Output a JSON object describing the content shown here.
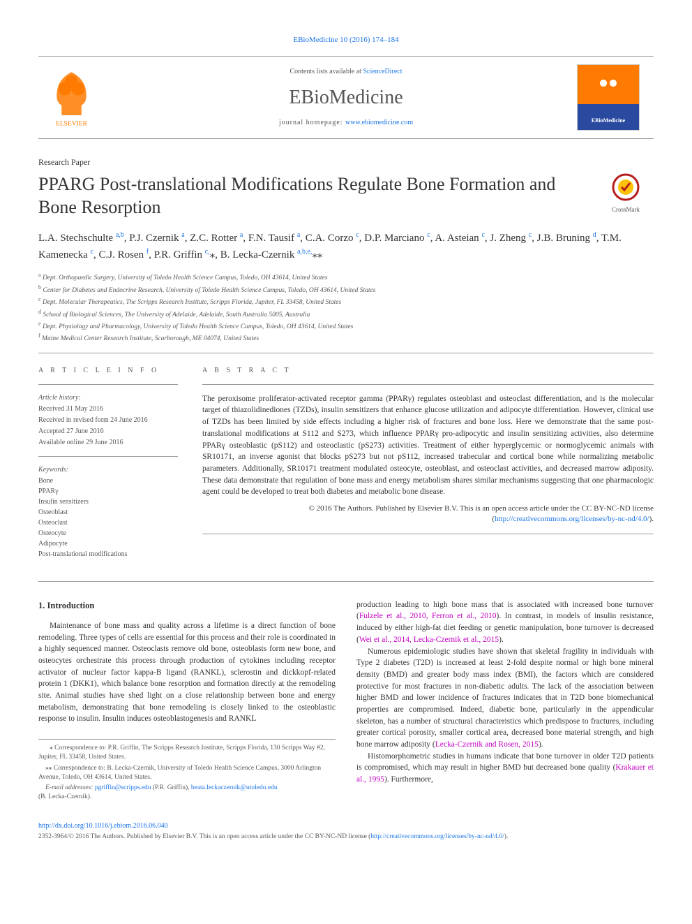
{
  "top_link": {
    "text": "EBioMedicine 10 (2016) 174–184"
  },
  "masthead": {
    "sd_prefix": "Contents lists available at ",
    "sd_link": "ScienceDirect",
    "journal_name": "EBioMedicine",
    "homepage_prefix": "journal homepage: ",
    "homepage_link": "www.ebiomedicine.com",
    "cover_label": "EBioMedicine"
  },
  "section_label": "Research Paper",
  "title": "PPARG Post-translational Modifications Regulate Bone Formation and Bone Resorption",
  "crossmark_label": "CrossMark",
  "authors_html": "L.A. Stechschulte <sup>a,b</sup>, P.J. Czernik <sup>a</sup>, Z.C. Rotter <sup>a</sup>, F.N. Tausif <sup>a</sup>, C.A. Corzo <sup>c</sup>, D.P. Marciano <sup>c</sup>, A. Asteian <sup>c</sup>, J. Zheng <sup>c</sup>, J.B. Bruning <sup>d</sup>, T.M. Kamenecka <sup>c</sup>, C.J. Rosen <sup>f</sup>, P.R. Griffin <sup>c,</sup>⁎, B. Lecka-Czernik <sup>a,b,e,</sup>⁎⁎",
  "affiliations": [
    {
      "sup": "a",
      "text": "Dept. Orthopaedic Surgery, University of Toledo Health Science Campus, Toledo, OH 43614, United States"
    },
    {
      "sup": "b",
      "text": "Center for Diabetes and Endocrine Research, University of Toledo Health Science Campus, Toledo, OH 43614, United States"
    },
    {
      "sup": "c",
      "text": "Dept. Molecular Therapeutics, The Scripps Research Institute, Scripps Florida, Jupiter, FL 33458, United States"
    },
    {
      "sup": "d",
      "text": "School of Biological Sciences, The University of Adelaide, Adelaide, South Australia 5005, Australia"
    },
    {
      "sup": "e",
      "text": "Dept. Physiology and Pharmacology, University of Toledo Health Science Campus, Toledo, OH 43614, United States"
    },
    {
      "sup": "f",
      "text": "Maine Medical Center Research Institute, Scarborough, ME 04074, United States"
    }
  ],
  "article_info": {
    "heading": "A R T I C L E   I N F O",
    "history_label": "Article history:",
    "history": [
      "Received 31 May 2016",
      "Received in revised form 24 June 2016",
      "Accepted 27 June 2016",
      "Available online 29 June 2016"
    ],
    "keywords_label": "Keywords:",
    "keywords": [
      "Bone",
      "PPARγ",
      "Insulin sensitizers",
      "Osteoblast",
      "Osteoclast",
      "Osteocyte",
      "Adipocyte",
      "Post-translational modifications"
    ]
  },
  "abstract": {
    "heading": "A B S T R A C T",
    "text": "The peroxisome proliferator-activated receptor gamma (PPARγ) regulates osteoblast and osteoclast differentiation, and is the molecular target of thiazolidinediones (TZDs), insulin sensitizers that enhance glucose utilization and adipocyte differentiation. However, clinical use of TZDs has been limited by side effects including a higher risk of fractures and bone loss. Here we demonstrate that the same post-translational modifications at S112 and S273, which influence PPARγ pro-adipocytic and insulin sensitizing activities, also determine PPARγ osteoblastic (pS112) and osteoclastic (pS273) activities. Treatment of either hyperglycemic or normoglycemic animals with SR10171, an inverse agonist that blocks pS273 but not pS112, increased trabecular and cortical bone while normalizing metabolic parameters. Additionally, SR10171 treatment modulated osteocyte, osteoblast, and osteoclast activities, and decreased marrow adiposity. These data demonstrate that regulation of bone mass and energy metabolism shares similar mechanisms suggesting that one pharmacologic agent could be developed to treat both diabetes and metabolic bone disease.",
    "copyright": "© 2016 The Authors. Published by Elsevier B.V. This is an open access article under the CC BY-NC-ND license",
    "license_url": "http://creativecommons.org/licenses/by-nc-nd/4.0/"
  },
  "body": {
    "h1": "1. Introduction",
    "p1": "Maintenance of bone mass and quality across a lifetime is a direct function of bone remodeling. Three types of cells are essential for this process and their role is coordinated in a highly sequenced manner. Osteoclasts remove old bone, osteoblasts form new bone, and osteocytes orchestrate this process through production of cytokines including receptor activator of nuclear factor kappa-B ligand (RANKL), sclerostin and dickkopf-related protein 1 (DKK1), which balance bone resorption and formation directly at the remodeling site. Animal studies have shed light on a close relationship between bone and energy metabolism, demonstrating that bone remodeling is closely linked to the osteoblastic response to insulin. Insulin induces osteoblastogenesis and RANKL",
    "p2_pre": "production leading to high bone mass that is associated with increased bone turnover (",
    "p2_link": "Fulzele et al., 2010, Ferron et al., 2010",
    "p2_mid": "). In contrast, in models of insulin resistance, induced by either high-fat diet feeding or genetic manipulation, bone turnover is decreased (",
    "p2_link2": "Wei et al., 2014, Lecka-Czernik et al., 2015",
    "p2_post": ").",
    "p3_pre": "Numerous epidemiologic studies have shown that skeletal fragility in individuals with Type 2 diabetes (T2D) is increased at least 2-fold despite normal or high bone mineral density (BMD) and greater body mass index (BMI), the factors which are considered protective for most fractures in non-diabetic adults. The lack of the association between higher BMD and lower incidence of fractures indicates that in T2D bone biomechanical properties are compromised. Indeed, diabetic bone, particularly in the appendicular skeleton, has a number of structural characteristics which predispose to fractures, including greater cortical porosity, smaller cortical area, decreased bone material strength, and high bone marrow adiposity (",
    "p3_link": "Lecka-Czernik and Rosen, 2015",
    "p3_post": ").",
    "p4_pre": "Histomorphometric studies in humans indicate that bone turnover in older T2D patients is compromised, which may result in higher BMD but decreased bone quality (",
    "p4_link": "Krakauer et al., 1995",
    "p4_post": "). Furthermore,"
  },
  "footnotes": {
    "c1": "⁎ Correspondence to: P.R. Griffin, The Scripps Research Institute, Scripps Florida, 130 Scripps Way #2, Jupiter, FL 33458, United States.",
    "c2": "⁎⁎ Correspondence to: B. Lecka-Czernik, University of Toledo Health Science Campus, 3000 Arlington Avenue, Toledo, OH 43614, United States.",
    "em_label": "E-mail addresses: ",
    "em1": "pgriffin@scripps.edu",
    "em1_paren": " (P.R. Griffin), ",
    "em2": "beata.leckaczernik@utoledo.edu",
    "em2_paren": " (B. Lecka-Czernik)."
  },
  "doi": {
    "url": "http://dx.doi.org/10.1016/j.ebiom.2016.06.040"
  },
  "issn": {
    "text": "2352-3964/© 2016 The Authors. Published by Elsevier B.V. This is an open access article under the CC BY-NC-ND license (",
    "url": "http://creativecommons.org/licenses/by-nc-nd/4.0/",
    "post": ")."
  },
  "colors": {
    "link_blue": "#1a73e8",
    "link_purple": "#c200c2",
    "elsevier_orange": "#ff7a00",
    "text": "#333333",
    "muted": "#555555"
  }
}
